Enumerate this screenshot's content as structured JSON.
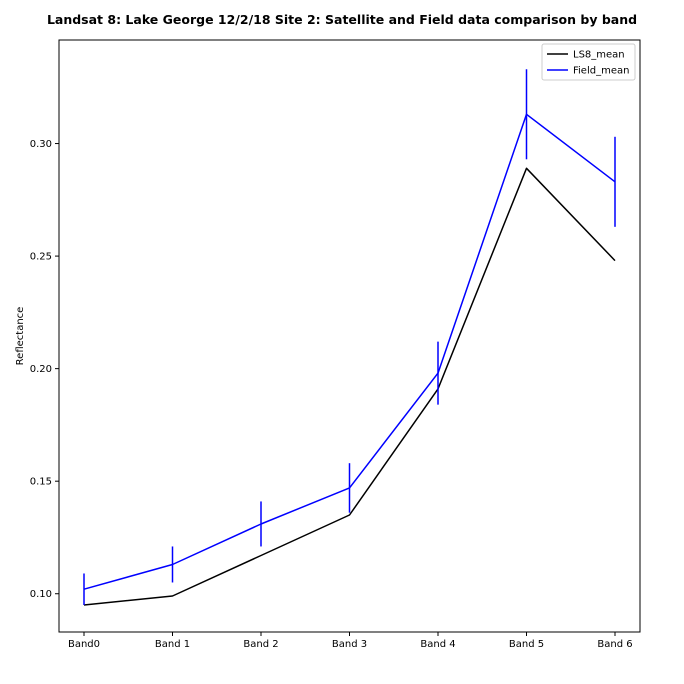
{
  "chart_data": {
    "type": "line",
    "title": "Landsat 8: Lake George 12/2/18 Site 2: Satellite and Field data comparison by band",
    "xlabel": "",
    "ylabel": "Reflectance",
    "categories": [
      "Band0",
      "Band 1",
      "Band 2",
      "Band 3",
      "Band 4",
      "Band 5",
      "Band 6"
    ],
    "ylim": [
      0.083,
      0.346
    ],
    "yticks": [
      0.1,
      0.15,
      0.2,
      0.25,
      0.3
    ],
    "ytick_labels": [
      "0.10",
      "0.15",
      "0.20",
      "0.25",
      "0.30"
    ],
    "grid": false,
    "legend": "top-right",
    "series": [
      {
        "name": "LS8_mean",
        "color": "#000000",
        "values": [
          0.095,
          0.099,
          0.117,
          0.135,
          0.191,
          0.289,
          0.248
        ]
      },
      {
        "name": "Field_mean",
        "color": "#0000ff",
        "values": [
          0.102,
          0.113,
          0.131,
          0.147,
          0.198,
          0.313,
          0.283
        ],
        "error": [
          0.007,
          0.008,
          0.01,
          0.011,
          0.014,
          0.02,
          0.02
        ]
      }
    ]
  }
}
